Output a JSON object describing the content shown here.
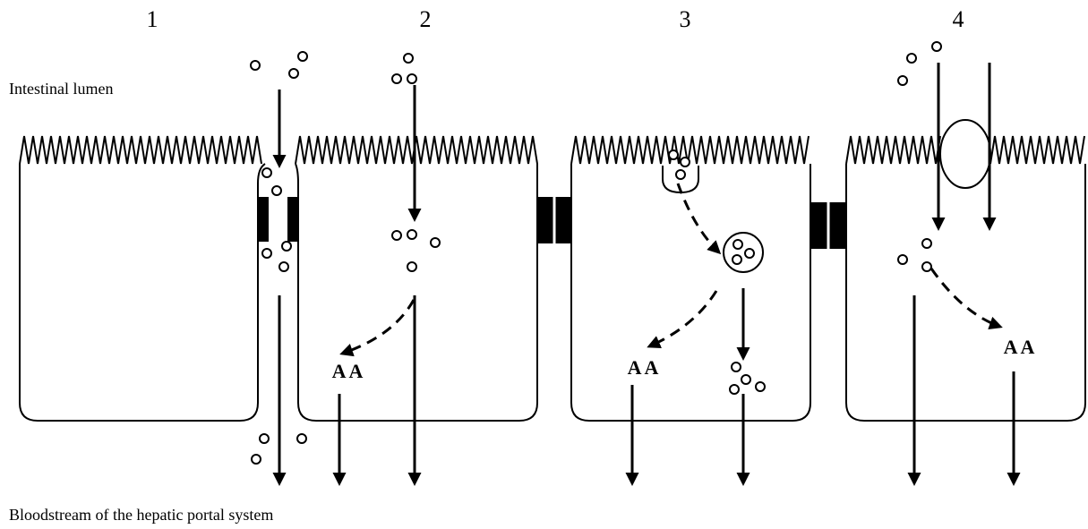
{
  "labels": {
    "panels": [
      "1",
      "2",
      "3",
      "4"
    ],
    "lumen": "Intestinal lumen",
    "bloodstream": "Bloodstream of the hepatic portal system"
  },
  "amino_acids": [
    "A A",
    "A A",
    "A A"
  ]
}
